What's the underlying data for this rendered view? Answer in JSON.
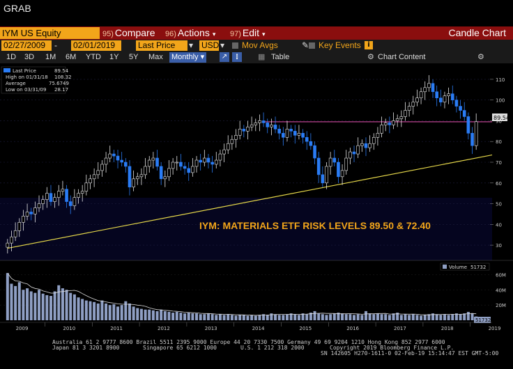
{
  "window": {
    "title": "GRAB"
  },
  "command_bar": {
    "ticker": "IYM US Equity",
    "menus": [
      {
        "num": "95)",
        "label": "Compare"
      },
      {
        "num": "96)",
        "label": "Actions"
      },
      {
        "num": "97)",
        "label": "Edit"
      }
    ],
    "chart_type": "Candle Chart"
  },
  "params": {
    "start_date": "02/27/2009",
    "end_date": "02/01/2019",
    "price_field": "Last Price",
    "currency": "USD",
    "mov_avgs": "Mov Avgs",
    "key_events": "Key Events"
  },
  "periods": {
    "items": [
      "1D",
      "3D",
      "1M",
      "6M",
      "YTD",
      "1Y",
      "5Y",
      "Max"
    ],
    "selected": "Monthly",
    "table": "Table",
    "chart_content": "Chart Content"
  },
  "legend": {
    "last_price_label": "Last Price",
    "last_price": "89.54",
    "high_label": "High on 01/31/18",
    "high": "108.32",
    "avg_label": "Average",
    "avg": "75.6749",
    "low_label": "Low on 03/31/09",
    "low": "28.17"
  },
  "volume_legend": {
    "label": "Volume",
    "value": "51732"
  },
  "volume_last_tag": "51732",
  "last_price_tag": "89.54",
  "annotation": "IYM: MATERIALS ETF RISK LEVELS 89.50 & 72.40",
  "footer": {
    "line1": "Australia 61 2 9777 8600 Brazil 5511 2395 9000 Europe 44 20 7330 7500 Germany 49 69 9204 1210 Hong Kong 852 2977 6000",
    "line2a": "Japan 81 3 3201 8900",
    "line2b": "Singapore 65 6212 1000",
    "line2c": "U.S. 1 212 318 2000",
    "line2d": "Copyright 2019 Bloomberg Finance L.P.",
    "line3": "SN 142605 H270-1611-0 02-Feb-19 15:14:47 EST  GMT-5:00"
  },
  "colors": {
    "up": "#e8e8e8",
    "down": "#2a7cf5",
    "resistance_line": "#d04aa0",
    "trend_line": "#e6d84a",
    "annotation": "#f2a51a",
    "volume": "#8f9fc4"
  },
  "chart_data": {
    "type": "candlestick",
    "x_tick_labels": [
      "2009",
      "2010",
      "2011",
      "2012",
      "2013",
      "2014",
      "2015",
      "2016",
      "2017",
      "2018",
      "2019"
    ],
    "y_ticks": [
      30,
      40,
      50,
      60,
      70,
      80,
      90,
      100,
      110
    ],
    "ylim": [
      25,
      115
    ],
    "volume_ticks": [
      "60M",
      "40M",
      "20M"
    ],
    "volume_ylim": [
      0,
      75
    ],
    "resistance_level": 89.5,
    "support_trend": {
      "start": [
        "2009-03",
        28.5
      ],
      "end": [
        "2019-02",
        73.5
      ]
    },
    "monthly_close": [
      31,
      34,
      37,
      41,
      44,
      46,
      45,
      48,
      50,
      52,
      55,
      51,
      53,
      56,
      57,
      51,
      49,
      53,
      55,
      56,
      60,
      62,
      64,
      66,
      69,
      72,
      74,
      73,
      71,
      70,
      68,
      58,
      62,
      63,
      64,
      68,
      71,
      72,
      68,
      62,
      63,
      67,
      70,
      70,
      68,
      67,
      65,
      68,
      71,
      70,
      72,
      70,
      69,
      71,
      74,
      76,
      79,
      81,
      83,
      86,
      85,
      87,
      88,
      89,
      90,
      89,
      87,
      88,
      86,
      84,
      82,
      86,
      85,
      83,
      84,
      82,
      80,
      78,
      72,
      64,
      60,
      68,
      72,
      70,
      63,
      66,
      72,
      75,
      74,
      78,
      79,
      77,
      79,
      82,
      84,
      88,
      89,
      88,
      90,
      91,
      92,
      95,
      97,
      99,
      101,
      104,
      106,
      108,
      104,
      101,
      99,
      102,
      103,
      100,
      97,
      95,
      92,
      84,
      78,
      89.54
    ],
    "monthly_volume": [
      62,
      48,
      45,
      50,
      40,
      42,
      38,
      36,
      40,
      35,
      33,
      32,
      38,
      46,
      42,
      40,
      36,
      34,
      30,
      28,
      26,
      25,
      24,
      22,
      26,
      22,
      20,
      21,
      18,
      20,
      25,
      22,
      18,
      16,
      15,
      14,
      14,
      13,
      12,
      14,
      12,
      11,
      10,
      11,
      10,
      9,
      10,
      9,
      9,
      8,
      8,
      9,
      8,
      7,
      8,
      7,
      8,
      7,
      6,
      7,
      7,
      6,
      7,
      6,
      7,
      8,
      7,
      9,
      8,
      7,
      7,
      8,
      9,
      8,
      7,
      9,
      8,
      10,
      12,
      9,
      8,
      7,
      8,
      9,
      10,
      9,
      8,
      8,
      7,
      8,
      7,
      12,
      9,
      8,
      9,
      8,
      8,
      7,
      9,
      10,
      7,
      8,
      7,
      8,
      7,
      6,
      7,
      8,
      9,
      8,
      7,
      8,
      7,
      8,
      9,
      8,
      9,
      11,
      9,
      5
    ],
    "volume_moving_average": "line series overlaid on volume bars",
    "last_price": 89.54
  }
}
